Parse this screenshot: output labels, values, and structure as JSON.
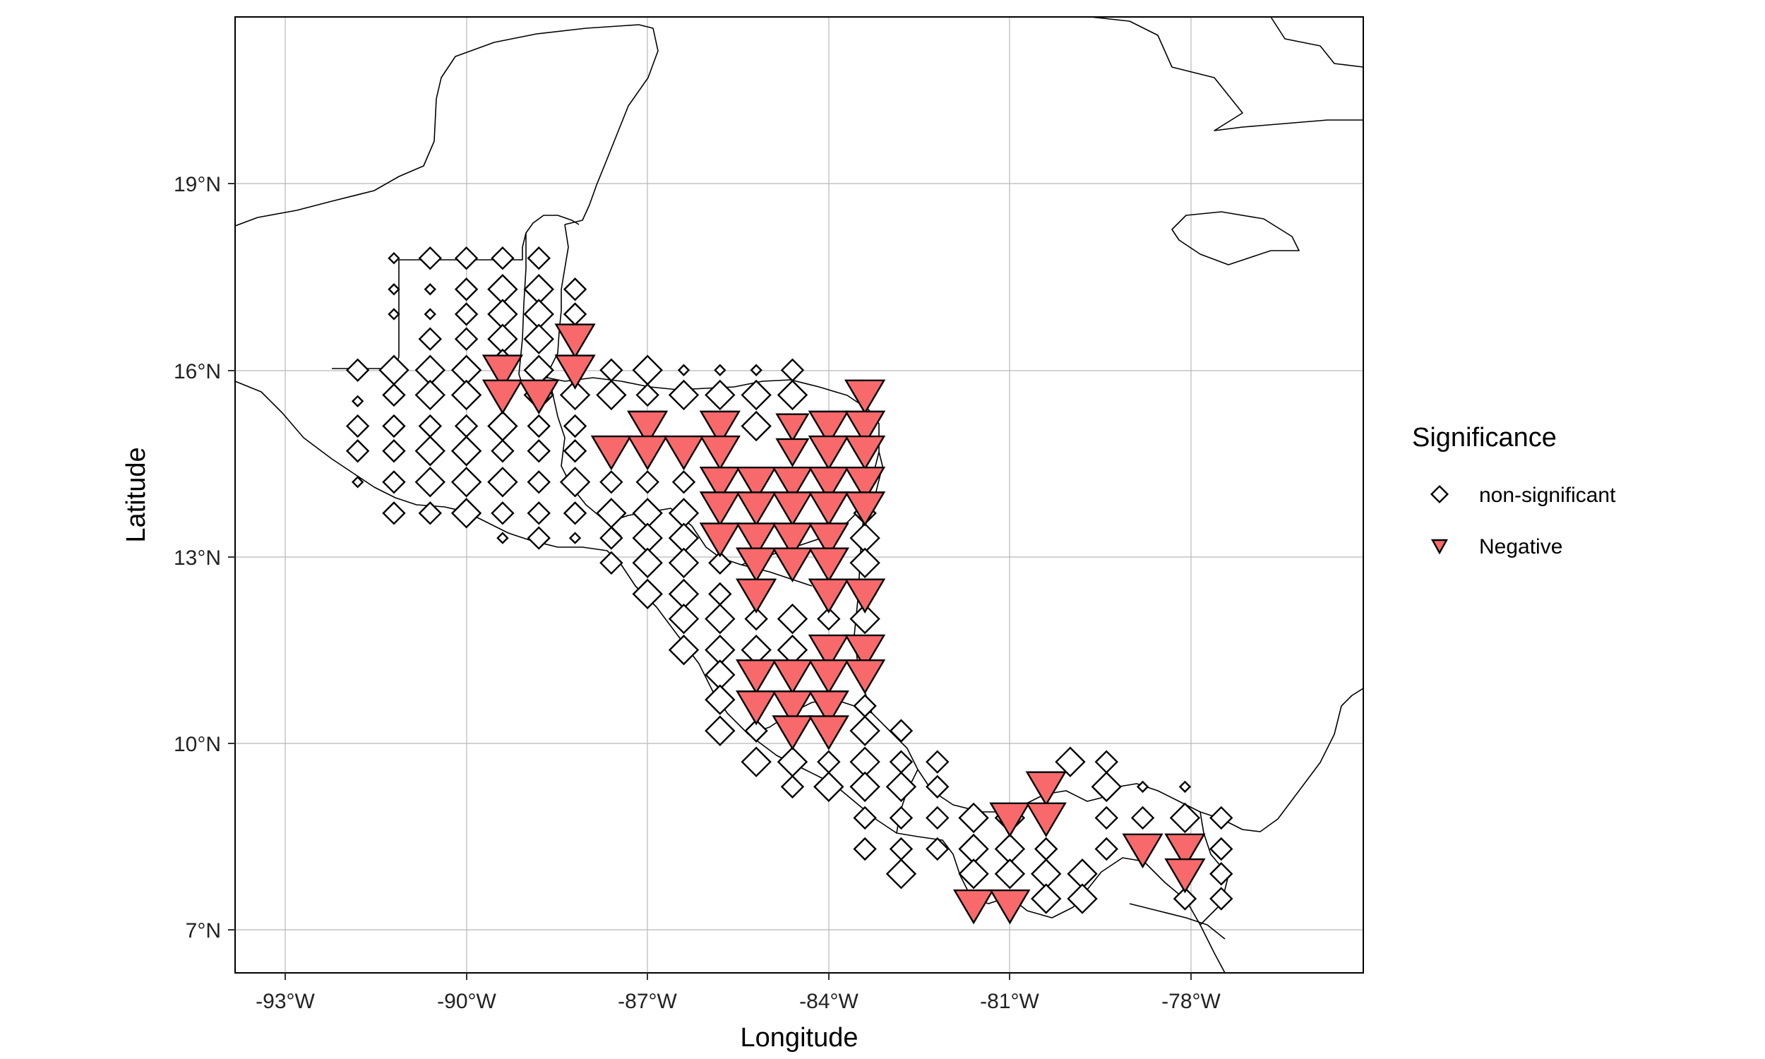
{
  "chart_data": {
    "type": "scatter",
    "xlabel": "Longitude",
    "ylabel": "Latitude",
    "xlim": [
      -93.8,
      -75.3
    ],
    "ylim": [
      6.3,
      21.7
    ],
    "x_ticks": [
      -93,
      -90,
      -87,
      -84,
      -81,
      -78
    ],
    "x_tick_labels": [
      "-93°W",
      "-90°W",
      "-87°W",
      "-84°W",
      "-81°W",
      "-78°W"
    ],
    "y_ticks": [
      7,
      10,
      13,
      16,
      19
    ],
    "y_tick_labels": [
      "7°N",
      "10°N",
      "13°N",
      "16°N",
      "19°N"
    ],
    "grid": true,
    "legend": {
      "title": "Significance",
      "placement": "right",
      "entries": [
        {
          "key": "ns",
          "label": "non-significant",
          "symbol": "diamond"
        },
        {
          "key": "neg",
          "label": "Negative",
          "symbol": "triangle-down",
          "color": "#F8696B"
        }
      ]
    },
    "series": [
      {
        "name": "non-significant",
        "points": [
          [
            -91.2,
            17.8,
            1
          ],
          [
            -90.6,
            17.8,
            2
          ],
          [
            -90,
            17.8,
            2
          ],
          [
            -89.4,
            17.8,
            2
          ],
          [
            -88.8,
            17.8,
            2
          ],
          [
            -91.2,
            17.3,
            1
          ],
          [
            -90.6,
            17.3,
            1
          ],
          [
            -90,
            17.3,
            2
          ],
          [
            -89.4,
            17.3,
            3
          ],
          [
            -88.8,
            17.3,
            3
          ],
          [
            -88.2,
            17.3,
            2
          ],
          [
            -91.2,
            16.9,
            1
          ],
          [
            -90.6,
            16.9,
            1
          ],
          [
            -90,
            16.9,
            2
          ],
          [
            -89.4,
            16.9,
            3
          ],
          [
            -88.8,
            16.9,
            3
          ],
          [
            -88.2,
            16.9,
            2
          ],
          [
            -90.6,
            16.5,
            2
          ],
          [
            -90,
            16.5,
            2
          ],
          [
            -89.4,
            16.5,
            3
          ],
          [
            -88.8,
            16.5,
            3
          ],
          [
            -91.8,
            16,
            2
          ],
          [
            -91.2,
            16,
            3
          ],
          [
            -90.6,
            16,
            3
          ],
          [
            -90,
            16,
            3
          ],
          [
            -89.4,
            16.1,
            3
          ],
          [
            -88.8,
            16,
            3
          ],
          [
            -87.6,
            16,
            2
          ],
          [
            -87,
            16,
            3
          ],
          [
            -86.4,
            16,
            1
          ],
          [
            -85.8,
            16,
            1
          ],
          [
            -85.2,
            16,
            1
          ],
          [
            -84.6,
            16,
            2
          ],
          [
            -91.8,
            15.5,
            1
          ],
          [
            -91.2,
            15.6,
            2
          ],
          [
            -90.6,
            15.6,
            3
          ],
          [
            -90,
            15.6,
            3
          ],
          [
            -88.8,
            15.6,
            3
          ],
          [
            -88.2,
            15.6,
            3
          ],
          [
            -87.6,
            15.6,
            3
          ],
          [
            -87,
            15.6,
            2
          ],
          [
            -86.4,
            15.6,
            3
          ],
          [
            -85.8,
            15.6,
            3
          ],
          [
            -85.2,
            15.6,
            3
          ],
          [
            -84.6,
            15.6,
            3
          ],
          [
            -91.8,
            15.1,
            2
          ],
          [
            -91.2,
            15.1,
            2
          ],
          [
            -90.6,
            15.1,
            2
          ],
          [
            -90,
            15.1,
            2
          ],
          [
            -89.4,
            15.1,
            3
          ],
          [
            -88.8,
            15.1,
            2
          ],
          [
            -88.2,
            15.1,
            2
          ],
          [
            -85.2,
            15.1,
            3
          ],
          [
            -91.8,
            14.7,
            2
          ],
          [
            -91.2,
            14.7,
            2
          ],
          [
            -90.6,
            14.7,
            3
          ],
          [
            -90,
            14.7,
            3
          ],
          [
            -89.4,
            14.7,
            2
          ],
          [
            -88.8,
            14.7,
            2
          ],
          [
            -88.2,
            14.7,
            2
          ],
          [
            -83.4,
            14.7,
            2
          ],
          [
            -91.8,
            14.2,
            1
          ],
          [
            -91.2,
            14.2,
            2
          ],
          [
            -90.6,
            14.2,
            3
          ],
          [
            -90,
            14.2,
            3
          ],
          [
            -89.4,
            14.2,
            3
          ],
          [
            -88.8,
            14.2,
            2
          ],
          [
            -88.2,
            14.2,
            3
          ],
          [
            -87.6,
            14.2,
            2
          ],
          [
            -87,
            14.2,
            2
          ],
          [
            -86.4,
            14.2,
            2
          ],
          [
            -83.4,
            14.2,
            2
          ],
          [
            -91.2,
            13.7,
            2
          ],
          [
            -90.6,
            13.7,
            2
          ],
          [
            -90,
            13.7,
            3
          ],
          [
            -89.4,
            13.7,
            2
          ],
          [
            -88.8,
            13.7,
            2
          ],
          [
            -88.2,
            13.7,
            2
          ],
          [
            -87.6,
            13.7,
            3
          ],
          [
            -87,
            13.7,
            3
          ],
          [
            -86.4,
            13.7,
            3
          ],
          [
            -83.4,
            13.7,
            2
          ],
          [
            -89.4,
            13.3,
            1
          ],
          [
            -88.8,
            13.3,
            2
          ],
          [
            -88.2,
            13.3,
            1
          ],
          [
            -87.6,
            13.3,
            2
          ],
          [
            -87,
            13.3,
            3
          ],
          [
            -86.4,
            13.3,
            3
          ],
          [
            -83.4,
            13.3,
            3
          ],
          [
            -87.6,
            12.9,
            2
          ],
          [
            -87,
            12.9,
            3
          ],
          [
            -86.4,
            12.9,
            3
          ],
          [
            -85.8,
            12.9,
            2
          ],
          [
            -83.4,
            12.9,
            3
          ],
          [
            -87,
            12.4,
            3
          ],
          [
            -86.4,
            12.4,
            3
          ],
          [
            -85.8,
            12.4,
            2
          ],
          [
            -83.4,
            12.4,
            2
          ],
          [
            -86.4,
            12,
            3
          ],
          [
            -85.8,
            12,
            3
          ],
          [
            -85.2,
            12,
            2
          ],
          [
            -84.6,
            12,
            3
          ],
          [
            -84,
            12,
            2
          ],
          [
            -83.4,
            12,
            3
          ],
          [
            -86.4,
            11.5,
            3
          ],
          [
            -85.8,
            11.5,
            3
          ],
          [
            -85.2,
            11.5,
            3
          ],
          [
            -84.6,
            11.5,
            3
          ],
          [
            -85.8,
            11.1,
            3
          ],
          [
            -85.8,
            10.7,
            3
          ],
          [
            -83.4,
            10.6,
            2
          ],
          [
            -85.8,
            10.2,
            3
          ],
          [
            -85.2,
            10.2,
            2
          ],
          [
            -83.4,
            10.2,
            3
          ],
          [
            -82.8,
            10.2,
            2
          ],
          [
            -85.2,
            9.7,
            3
          ],
          [
            -84.6,
            9.7,
            3
          ],
          [
            -84,
            9.7,
            2
          ],
          [
            -83.4,
            9.7,
            3
          ],
          [
            -82.8,
            9.7,
            2
          ],
          [
            -82.2,
            9.7,
            2
          ],
          [
            -80,
            9.7,
            3
          ],
          [
            -79.4,
            9.7,
            2
          ],
          [
            -84.6,
            9.3,
            2
          ],
          [
            -84,
            9.3,
            3
          ],
          [
            -83.4,
            9.3,
            3
          ],
          [
            -82.8,
            9.3,
            3
          ],
          [
            -82.2,
            9.3,
            2
          ],
          [
            -79.4,
            9.3,
            3
          ],
          [
            -78.8,
            9.3,
            1
          ],
          [
            -78.1,
            9.3,
            1
          ],
          [
            -83.4,
            8.8,
            2
          ],
          [
            -82.8,
            8.8,
            2
          ],
          [
            -82.2,
            8.8,
            2
          ],
          [
            -81.6,
            8.8,
            3
          ],
          [
            -81,
            8.8,
            3
          ],
          [
            -79.4,
            8.8,
            2
          ],
          [
            -78.8,
            8.8,
            2
          ],
          [
            -78.1,
            8.8,
            3
          ],
          [
            -77.5,
            8.8,
            2
          ],
          [
            -83.4,
            8.3,
            2
          ],
          [
            -82.8,
            8.3,
            2
          ],
          [
            -82.2,
            8.3,
            2
          ],
          [
            -81.6,
            8.3,
            3
          ],
          [
            -81,
            8.3,
            3
          ],
          [
            -80.4,
            8.3,
            2
          ],
          [
            -79.4,
            8.3,
            2
          ],
          [
            -78.8,
            8.3,
            2
          ],
          [
            -77.5,
            8.3,
            2
          ],
          [
            -82.8,
            7.9,
            3
          ],
          [
            -81.6,
            7.9,
            3
          ],
          [
            -81,
            7.9,
            3
          ],
          [
            -80.4,
            7.9,
            3
          ],
          [
            -79.8,
            7.9,
            3
          ],
          [
            -77.5,
            7.9,
            2
          ],
          [
            -80.4,
            7.5,
            3
          ],
          [
            -79.8,
            7.5,
            3
          ],
          [
            -78.1,
            7.5,
            2
          ],
          [
            -77.5,
            7.5,
            2
          ]
        ]
      },
      {
        "name": "Negative",
        "points": [
          [
            -88.2,
            16.5,
            3
          ],
          [
            -89.4,
            16,
            3
          ],
          [
            -88.2,
            16,
            3
          ],
          [
            -89.4,
            15.6,
            3
          ],
          [
            -88.8,
            15.6,
            3
          ],
          [
            -83.4,
            15.6,
            3
          ],
          [
            -87,
            15.1,
            3
          ],
          [
            -85.8,
            15.1,
            3
          ],
          [
            -84.6,
            15.1,
            2
          ],
          [
            -84,
            15.1,
            3
          ],
          [
            -83.4,
            15.1,
            3
          ],
          [
            -87.6,
            14.7,
            3
          ],
          [
            -87,
            14.7,
            3
          ],
          [
            -86.4,
            14.7,
            3
          ],
          [
            -85.8,
            14.7,
            3
          ],
          [
            -84.6,
            14.7,
            2
          ],
          [
            -84,
            14.7,
            3
          ],
          [
            -83.4,
            14.7,
            3
          ],
          [
            -85.8,
            14.2,
            3
          ],
          [
            -85.2,
            14.2,
            3
          ],
          [
            -84.6,
            14.2,
            3
          ],
          [
            -84,
            14.2,
            3
          ],
          [
            -83.4,
            14.2,
            3
          ],
          [
            -85.8,
            13.8,
            3
          ],
          [
            -85.2,
            13.8,
            3
          ],
          [
            -84.6,
            13.8,
            3
          ],
          [
            -84,
            13.8,
            3
          ],
          [
            -83.4,
            13.8,
            3
          ],
          [
            -85.8,
            13.3,
            3
          ],
          [
            -85.2,
            13.3,
            3
          ],
          [
            -84.6,
            13.3,
            3
          ],
          [
            -84,
            13.3,
            3
          ],
          [
            -85.2,
            12.9,
            3
          ],
          [
            -84.6,
            12.9,
            3
          ],
          [
            -84,
            12.9,
            3
          ],
          [
            -85.2,
            12.4,
            3
          ],
          [
            -84,
            12.4,
            3
          ],
          [
            -83.4,
            12.4,
            3
          ],
          [
            -84,
            11.5,
            3
          ],
          [
            -83.4,
            11.5,
            3
          ],
          [
            -85.2,
            11.1,
            3
          ],
          [
            -84.6,
            11.1,
            3
          ],
          [
            -84,
            11.1,
            3
          ],
          [
            -83.4,
            11.1,
            3
          ],
          [
            -85.2,
            10.6,
            3
          ],
          [
            -84.6,
            10.6,
            3
          ],
          [
            -84,
            10.6,
            3
          ],
          [
            -84.6,
            10.2,
            3
          ],
          [
            -84,
            10.2,
            3
          ],
          [
            -80.4,
            9.3,
            3
          ],
          [
            -81,
            8.8,
            3
          ],
          [
            -80.4,
            8.8,
            3
          ],
          [
            -78.8,
            8.3,
            3
          ],
          [
            -78.1,
            8.3,
            3
          ],
          [
            -78.1,
            7.9,
            3
          ],
          [
            -81.6,
            7.4,
            3
          ],
          [
            -81,
            7.4,
            3
          ]
        ]
      }
    ]
  },
  "ui": {
    "xlabel": "Longitude",
    "ylabel": "Latitude",
    "legend_title": "Significance",
    "legend_ns": "non-significant",
    "legend_neg": "Negative",
    "x_tick_labels": [
      "-93°W",
      "-90°W",
      "-87°W",
      "-84°W",
      "-81°W",
      "-78°W"
    ],
    "y_tick_labels": [
      "7°N",
      "10°N",
      "13°N",
      "16°N",
      "19°N"
    ]
  },
  "colors": {
    "negative": "#F8696B",
    "grid": "#b8b8b8",
    "border": "#000000"
  }
}
